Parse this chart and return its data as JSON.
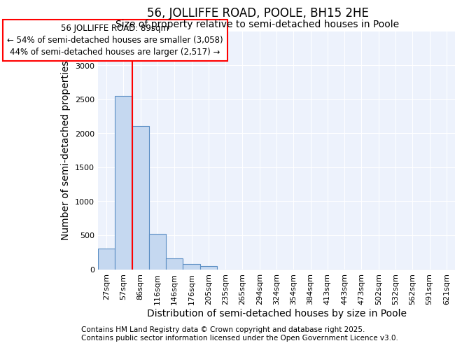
{
  "title": "56, JOLLIFFE ROAD, POOLE, BH15 2HE",
  "subtitle": "Size of property relative to semi-detached houses in Poole",
  "xlabel": "Distribution of semi-detached houses by size in Poole",
  "ylabel": "Number of semi-detached properties",
  "categories": [
    "27sqm",
    "57sqm",
    "86sqm",
    "116sqm",
    "146sqm",
    "176sqm",
    "205sqm",
    "235sqm",
    "265sqm",
    "294sqm",
    "324sqm",
    "354sqm",
    "384sqm",
    "413sqm",
    "443sqm",
    "473sqm",
    "502sqm",
    "532sqm",
    "562sqm",
    "591sqm",
    "621sqm"
  ],
  "values": [
    300,
    2550,
    2100,
    520,
    155,
    80,
    45,
    0,
    0,
    0,
    0,
    0,
    0,
    0,
    0,
    0,
    0,
    0,
    0,
    0,
    0
  ],
  "bar_color": "#c5d8f0",
  "bar_edge_color": "#5b8ec4",
  "vline_color": "red",
  "annotation_line1": "56 JOLLIFFE ROAD: 89sqm",
  "annotation_line2": "← 54% of semi-detached houses are smaller (3,058)",
  "annotation_line3": "44% of semi-detached houses are larger (2,517) →",
  "ylim": [
    0,
    3500
  ],
  "yticks": [
    0,
    500,
    1000,
    1500,
    2000,
    2500,
    3000,
    3500
  ],
  "background_color": "#edf2fc",
  "grid_color": "#ffffff",
  "footnote1": "Contains HM Land Registry data © Crown copyright and database right 2025.",
  "footnote2": "Contains public sector information licensed under the Open Government Licence v3.0.",
  "title_fontsize": 12,
  "subtitle_fontsize": 10,
  "axis_label_fontsize": 10,
  "tick_fontsize": 8,
  "annotation_fontsize": 8.5,
  "footnote_fontsize": 7.5
}
